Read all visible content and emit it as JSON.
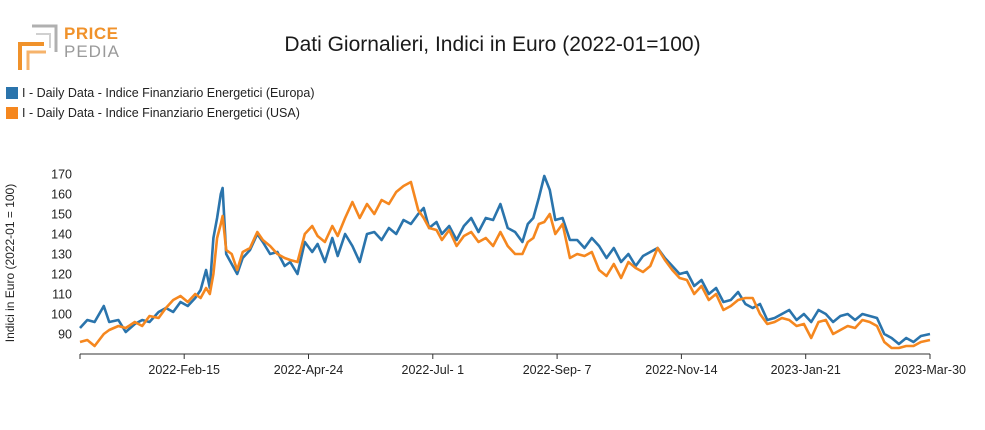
{
  "header": {
    "logo_top": "PRICE",
    "logo_bottom": "PEDIA",
    "logo_color": "#f0922b",
    "logo_gray": "#9a9a9a"
  },
  "chart_data": {
    "type": "line",
    "title": "Dati Giornalieri, Indici in Euro (2022-01=100)",
    "ylabel": "Indici in Euro (2022-01 = 100)",
    "xlabel": "",
    "ylim": [
      82,
      172
    ],
    "y_ticks": [
      90,
      100,
      110,
      120,
      130,
      140,
      150,
      160,
      170
    ],
    "x_range": [
      "2021-12-20",
      "2023-03-30"
    ],
    "x_ticks": [
      {
        "date": "2022-02-15",
        "label": "2022-Feb-15"
      },
      {
        "date": "2022-04-24",
        "label": "2022-Apr-24"
      },
      {
        "date": "2022-07-01",
        "label": "2022-Jul- 1"
      },
      {
        "date": "2022-09-07",
        "label": "2022-Sep- 7"
      },
      {
        "date": "2022-11-14",
        "label": "2022-Nov-14"
      },
      {
        "date": "2023-01-21",
        "label": "2023-Jan-21"
      },
      {
        "date": "2023-03-30",
        "label": "2023-Mar-30"
      }
    ],
    "grid": false,
    "legend_position": "top-left",
    "series": [
      {
        "name": "I - Daily Data - Indice Finanziario Energetici (Europa)",
        "color": "#2a74ac",
        "points": [
          [
            "2021-12-20",
            93
          ],
          [
            "2021-12-24",
            97
          ],
          [
            "2021-12-28",
            96
          ],
          [
            "2022-01-02",
            104
          ],
          [
            "2022-01-05",
            96
          ],
          [
            "2022-01-10",
            97
          ],
          [
            "2022-01-14",
            91
          ],
          [
            "2022-01-19",
            95
          ],
          [
            "2022-01-23",
            97
          ],
          [
            "2022-01-27",
            96
          ],
          [
            "2022-02-01",
            101
          ],
          [
            "2022-02-05",
            103
          ],
          [
            "2022-02-09",
            101
          ],
          [
            "2022-02-13",
            106
          ],
          [
            "2022-02-17",
            104
          ],
          [
            "2022-02-21",
            108
          ],
          [
            "2022-02-24",
            112
          ],
          [
            "2022-02-27",
            122
          ],
          [
            "2022-03-01",
            113
          ],
          [
            "2022-03-03",
            138
          ],
          [
            "2022-03-05",
            148
          ],
          [
            "2022-03-07",
            160
          ],
          [
            "2022-03-08",
            163
          ],
          [
            "2022-03-10",
            130
          ],
          [
            "2022-03-13",
            125
          ],
          [
            "2022-03-16",
            120
          ],
          [
            "2022-03-19",
            128
          ],
          [
            "2022-03-23",
            132
          ],
          [
            "2022-03-27",
            140
          ],
          [
            "2022-03-30",
            136
          ],
          [
            "2022-04-03",
            130
          ],
          [
            "2022-04-07",
            131
          ],
          [
            "2022-04-11",
            124
          ],
          [
            "2022-04-14",
            126
          ],
          [
            "2022-04-18",
            120
          ],
          [
            "2022-04-22",
            136
          ],
          [
            "2022-04-26",
            131
          ],
          [
            "2022-04-29",
            135
          ],
          [
            "2022-05-03",
            126
          ],
          [
            "2022-05-07",
            138
          ],
          [
            "2022-05-10",
            129
          ],
          [
            "2022-05-14",
            140
          ],
          [
            "2022-05-18",
            134
          ],
          [
            "2022-05-22",
            126
          ],
          [
            "2022-05-26",
            140
          ],
          [
            "2022-05-30",
            141
          ],
          [
            "2022-06-03",
            137
          ],
          [
            "2022-06-07",
            143
          ],
          [
            "2022-06-11",
            140
          ],
          [
            "2022-06-15",
            147
          ],
          [
            "2022-06-19",
            145
          ],
          [
            "2022-06-23",
            150
          ],
          [
            "2022-06-26",
            153
          ],
          [
            "2022-06-29",
            143
          ],
          [
            "2022-07-03",
            146
          ],
          [
            "2022-07-06",
            140
          ],
          [
            "2022-07-10",
            144
          ],
          [
            "2022-07-14",
            137
          ],
          [
            "2022-07-18",
            144
          ],
          [
            "2022-07-22",
            148
          ],
          [
            "2022-07-26",
            141
          ],
          [
            "2022-07-30",
            148
          ],
          [
            "2022-08-03",
            147
          ],
          [
            "2022-08-07",
            155
          ],
          [
            "2022-08-11",
            143
          ],
          [
            "2022-08-15",
            141
          ],
          [
            "2022-08-19",
            136
          ],
          [
            "2022-08-22",
            145
          ],
          [
            "2022-08-25",
            148
          ],
          [
            "2022-08-28",
            158
          ],
          [
            "2022-08-31",
            169
          ],
          [
            "2022-09-03",
            162
          ],
          [
            "2022-09-06",
            147
          ],
          [
            "2022-09-10",
            148
          ],
          [
            "2022-09-14",
            137
          ],
          [
            "2022-09-18",
            137
          ],
          [
            "2022-09-22",
            133
          ],
          [
            "2022-09-26",
            138
          ],
          [
            "2022-09-30",
            134
          ],
          [
            "2022-10-04",
            128
          ],
          [
            "2022-10-08",
            133
          ],
          [
            "2022-10-12",
            126
          ],
          [
            "2022-10-16",
            130
          ],
          [
            "2022-10-20",
            124
          ],
          [
            "2022-10-24",
            129
          ],
          [
            "2022-10-28",
            131
          ],
          [
            "2022-11-01",
            133
          ],
          [
            "2022-11-05",
            128
          ],
          [
            "2022-11-09",
            124
          ],
          [
            "2022-11-13",
            120
          ],
          [
            "2022-11-17",
            121
          ],
          [
            "2022-11-21",
            114
          ],
          [
            "2022-11-25",
            117
          ],
          [
            "2022-11-29",
            110
          ],
          [
            "2022-12-03",
            113
          ],
          [
            "2022-12-07",
            106
          ],
          [
            "2022-12-11",
            107
          ],
          [
            "2022-12-15",
            111
          ],
          [
            "2022-12-19",
            105
          ],
          [
            "2022-12-23",
            103
          ],
          [
            "2022-12-27",
            105
          ],
          [
            "2022-12-31",
            97
          ],
          [
            "2023-01-04",
            98
          ],
          [
            "2023-01-08",
            100
          ],
          [
            "2023-01-12",
            102
          ],
          [
            "2023-01-16",
            97
          ],
          [
            "2023-01-20",
            100
          ],
          [
            "2023-01-24",
            96
          ],
          [
            "2023-01-28",
            102
          ],
          [
            "2023-02-01",
            100
          ],
          [
            "2023-02-05",
            96
          ],
          [
            "2023-02-09",
            99
          ],
          [
            "2023-02-13",
            100
          ],
          [
            "2023-02-17",
            97
          ],
          [
            "2023-02-21",
            100
          ],
          [
            "2023-02-25",
            99
          ],
          [
            "2023-03-01",
            98
          ],
          [
            "2023-03-05",
            90
          ],
          [
            "2023-03-09",
            88
          ],
          [
            "2023-03-13",
            85
          ],
          [
            "2023-03-17",
            88
          ],
          [
            "2023-03-21",
            86
          ],
          [
            "2023-03-25",
            89
          ],
          [
            "2023-03-30",
            90
          ]
        ]
      },
      {
        "name": "I - Daily Data - Indice Finanziario Energetici (USA)",
        "color": "#f5871f",
        "points": [
          [
            "2021-12-20",
            86
          ],
          [
            "2021-12-24",
            87
          ],
          [
            "2021-12-28",
            84
          ],
          [
            "2022-01-02",
            90
          ],
          [
            "2022-01-05",
            92
          ],
          [
            "2022-01-10",
            94
          ],
          [
            "2022-01-14",
            93
          ],
          [
            "2022-01-19",
            96
          ],
          [
            "2022-01-23",
            94
          ],
          [
            "2022-01-27",
            99
          ],
          [
            "2022-02-01",
            98
          ],
          [
            "2022-02-05",
            103
          ],
          [
            "2022-02-09",
            107
          ],
          [
            "2022-02-13",
            109
          ],
          [
            "2022-02-17",
            106
          ],
          [
            "2022-02-21",
            110
          ],
          [
            "2022-02-24",
            108
          ],
          [
            "2022-02-27",
            113
          ],
          [
            "2022-03-01",
            110
          ],
          [
            "2022-03-03",
            120
          ],
          [
            "2022-03-05",
            138
          ],
          [
            "2022-03-07",
            145
          ],
          [
            "2022-03-08",
            149
          ],
          [
            "2022-03-10",
            132
          ],
          [
            "2022-03-13",
            130
          ],
          [
            "2022-03-16",
            122
          ],
          [
            "2022-03-19",
            131
          ],
          [
            "2022-03-23",
            133
          ],
          [
            "2022-03-27",
            141
          ],
          [
            "2022-03-30",
            137
          ],
          [
            "2022-04-03",
            134
          ],
          [
            "2022-04-07",
            130
          ],
          [
            "2022-04-11",
            128
          ],
          [
            "2022-04-14",
            127
          ],
          [
            "2022-04-18",
            126
          ],
          [
            "2022-04-22",
            140
          ],
          [
            "2022-04-26",
            144
          ],
          [
            "2022-04-29",
            139
          ],
          [
            "2022-05-03",
            136
          ],
          [
            "2022-05-07",
            144
          ],
          [
            "2022-05-10",
            139
          ],
          [
            "2022-05-14",
            148
          ],
          [
            "2022-05-18",
            156
          ],
          [
            "2022-05-22",
            148
          ],
          [
            "2022-05-26",
            155
          ],
          [
            "2022-05-30",
            150
          ],
          [
            "2022-06-03",
            157
          ],
          [
            "2022-06-07",
            155
          ],
          [
            "2022-06-11",
            161
          ],
          [
            "2022-06-15",
            164
          ],
          [
            "2022-06-19",
            166
          ],
          [
            "2022-06-23",
            152
          ],
          [
            "2022-06-26",
            148
          ],
          [
            "2022-06-29",
            143
          ],
          [
            "2022-07-03",
            142
          ],
          [
            "2022-07-06",
            137
          ],
          [
            "2022-07-10",
            142
          ],
          [
            "2022-07-14",
            134
          ],
          [
            "2022-07-18",
            139
          ],
          [
            "2022-07-22",
            141
          ],
          [
            "2022-07-26",
            136
          ],
          [
            "2022-07-30",
            138
          ],
          [
            "2022-08-03",
            134
          ],
          [
            "2022-08-07",
            141
          ],
          [
            "2022-08-11",
            134
          ],
          [
            "2022-08-15",
            130
          ],
          [
            "2022-08-19",
            130
          ],
          [
            "2022-08-22",
            136
          ],
          [
            "2022-08-25",
            138
          ],
          [
            "2022-08-28",
            145
          ],
          [
            "2022-08-31",
            146
          ],
          [
            "2022-09-03",
            150
          ],
          [
            "2022-09-06",
            140
          ],
          [
            "2022-09-10",
            145
          ],
          [
            "2022-09-14",
            128
          ],
          [
            "2022-09-18",
            130
          ],
          [
            "2022-09-22",
            129
          ],
          [
            "2022-09-26",
            131
          ],
          [
            "2022-09-30",
            122
          ],
          [
            "2022-10-04",
            119
          ],
          [
            "2022-10-08",
            125
          ],
          [
            "2022-10-12",
            118
          ],
          [
            "2022-10-16",
            126
          ],
          [
            "2022-10-20",
            123
          ],
          [
            "2022-10-24",
            121
          ],
          [
            "2022-10-28",
            124
          ],
          [
            "2022-11-01",
            133
          ],
          [
            "2022-11-05",
            127
          ],
          [
            "2022-11-09",
            122
          ],
          [
            "2022-11-13",
            118
          ],
          [
            "2022-11-17",
            117
          ],
          [
            "2022-11-21",
            110
          ],
          [
            "2022-11-25",
            114
          ],
          [
            "2022-11-29",
            107
          ],
          [
            "2022-12-03",
            110
          ],
          [
            "2022-12-07",
            102
          ],
          [
            "2022-12-11",
            104
          ],
          [
            "2022-12-15",
            107
          ],
          [
            "2022-12-19",
            108
          ],
          [
            "2022-12-23",
            108
          ],
          [
            "2022-12-27",
            100
          ],
          [
            "2022-12-31",
            95
          ],
          [
            "2023-01-04",
            96
          ],
          [
            "2023-01-08",
            98
          ],
          [
            "2023-01-12",
            97
          ],
          [
            "2023-01-16",
            94
          ],
          [
            "2023-01-20",
            95
          ],
          [
            "2023-01-24",
            88
          ],
          [
            "2023-01-28",
            96
          ],
          [
            "2023-02-01",
            97
          ],
          [
            "2023-02-05",
            90
          ],
          [
            "2023-02-09",
            92
          ],
          [
            "2023-02-13",
            94
          ],
          [
            "2023-02-17",
            93
          ],
          [
            "2023-02-21",
            97
          ],
          [
            "2023-02-25",
            96
          ],
          [
            "2023-03-01",
            94
          ],
          [
            "2023-03-05",
            86
          ],
          [
            "2023-03-09",
            83
          ],
          [
            "2023-03-13",
            83
          ],
          [
            "2023-03-17",
            84
          ],
          [
            "2023-03-21",
            84
          ],
          [
            "2023-03-25",
            86
          ],
          [
            "2023-03-30",
            87
          ]
        ]
      }
    ]
  }
}
